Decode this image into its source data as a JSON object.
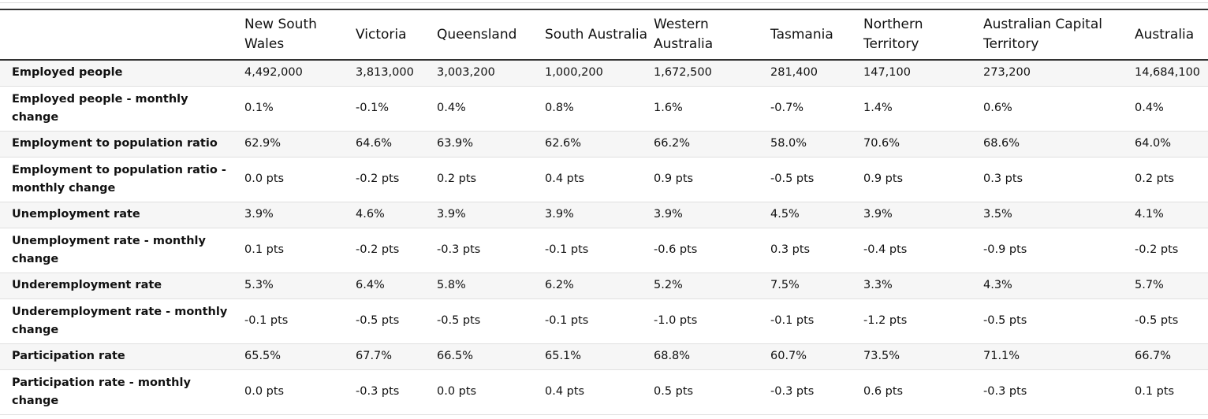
{
  "table": {
    "columns": [
      "",
      "New South Wales",
      "Victoria",
      "Queensland",
      "South Australia",
      "Western Australia",
      "Tasmania",
      "Northern Territory",
      "Australian Capital Territory",
      "Australia"
    ],
    "rows": [
      {
        "label": "Employed people",
        "values": [
          "4,492,000",
          "3,813,000",
          "3,003,200",
          "1,000,200",
          "1,672,500",
          "281,400",
          "147,100",
          "273,200",
          "14,684,100"
        ]
      },
      {
        "label": "Employed people - monthly change",
        "values": [
          "0.1%",
          "-0.1%",
          "0.4%",
          "0.8%",
          "1.6%",
          "-0.7%",
          "1.4%",
          "0.6%",
          "0.4%"
        ]
      },
      {
        "label": "Employment to population ratio",
        "values": [
          "62.9%",
          "64.6%",
          "63.9%",
          "62.6%",
          "66.2%",
          "58.0%",
          "70.6%",
          "68.6%",
          "64.0%"
        ]
      },
      {
        "label": "Employment to population ratio - monthly change",
        "values": [
          "0.0 pts",
          "-0.2 pts",
          "0.2 pts",
          "0.4 pts",
          "0.9 pts",
          "-0.5 pts",
          "0.9 pts",
          "0.3 pts",
          "0.2 pts"
        ]
      },
      {
        "label": "Unemployment rate",
        "values": [
          "3.9%",
          "4.6%",
          "3.9%",
          "3.9%",
          "3.9%",
          "4.5%",
          "3.9%",
          "3.5%",
          "4.1%"
        ]
      },
      {
        "label": "Unemployment rate - monthly change",
        "values": [
          "0.1 pts",
          "-0.2 pts",
          "-0.3 pts",
          "-0.1 pts",
          "-0.6 pts",
          "0.3 pts",
          "-0.4 pts",
          "-0.9 pts",
          "-0.2 pts"
        ]
      },
      {
        "label": "Underemployment rate",
        "values": [
          "5.3%",
          "6.4%",
          "5.8%",
          "6.2%",
          "5.2%",
          "7.5%",
          "3.3%",
          "4.3%",
          "5.7%"
        ]
      },
      {
        "label": "Underemployment rate - monthly change",
        "values": [
          "-0.1 pts",
          "-0.5 pts",
          "-0.5 pts",
          "-0.1 pts",
          "-1.0 pts",
          "-0.1 pts",
          "-1.2 pts",
          "-0.5 pts",
          "-0.5 pts"
        ]
      },
      {
        "label": "Participation rate",
        "values": [
          "65.5%",
          "67.7%",
          "66.5%",
          "65.1%",
          "68.8%",
          "60.7%",
          "73.5%",
          "71.1%",
          "66.7%"
        ]
      },
      {
        "label": "Participation rate - monthly change",
        "values": [
          "0.0 pts",
          "-0.3 pts",
          "0.0 pts",
          "0.4 pts",
          "0.5 pts",
          "-0.3 pts",
          "0.6 pts",
          "-0.3 pts",
          "0.1 pts"
        ]
      }
    ]
  }
}
